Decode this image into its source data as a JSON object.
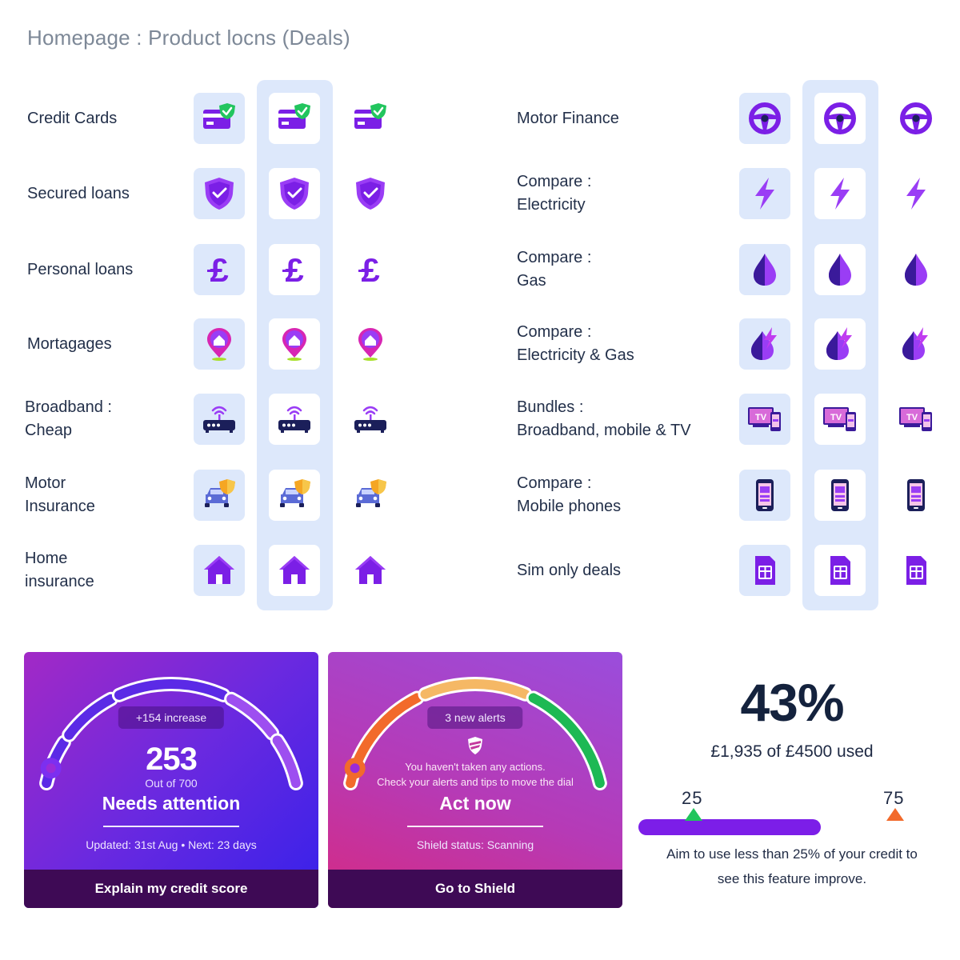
{
  "page": {
    "title": "Homepage : Product Icons (Deals)",
    "title_display": "Homepage : Product locns (Deals)"
  },
  "left_rows": [
    {
      "label": "Credit Cards",
      "icon": "credit-card-icon"
    },
    {
      "label": "Secured loans",
      "icon": "shield-check-icon"
    },
    {
      "label": "Personal loans",
      "icon": "pound-icon"
    },
    {
      "label": "Mortagages",
      "icon": "home-pin-icon"
    },
    {
      "label": "Broadband :\nCheap",
      "icon": "router-icon"
    },
    {
      "label": "Motor\nInsurance",
      "icon": "car-shield-icon"
    },
    {
      "label": "Home\ninsurance",
      "icon": "house-icon"
    }
  ],
  "right_rows": [
    {
      "label": "Motor Finance",
      "icon": "steering-wheel-icon"
    },
    {
      "label": "Compare :\nElectricity",
      "icon": "lightning-icon"
    },
    {
      "label": "Compare :\nGas",
      "icon": "flame-drop-icon"
    },
    {
      "label": "Compare :\nElectricity & Gas",
      "icon": "flame-bolt-icon"
    },
    {
      "label": "Bundles :\nBroadband, mobile & TV",
      "icon": "tv-phone-icon"
    },
    {
      "label": "Compare :\nMobile phones",
      "icon": "mobile-phone-icon"
    },
    {
      "label": "Sim only deals",
      "icon": "sim-card-icon"
    }
  ],
  "icon_colors": {
    "purple": "#7b1fe6",
    "violet": "#9a3df5",
    "green": "#21c55d",
    "lime": "#a8e02a",
    "orange": "#f5a623",
    "light": "#dde8fb"
  },
  "credit_card": {
    "badge": "+154 increase",
    "score": "253",
    "out_of": "Out of 700",
    "status": "Needs attention",
    "updated": "Updated: 31st Aug • Next: 23 days",
    "button": "Explain my credit score",
    "score_value": 253,
    "score_max": 700
  },
  "shield_card": {
    "badge": "3 new alerts",
    "message_line1": "You haven't taken any actions.",
    "message_line2": "Check your alerts and tips to move the dial",
    "status": "Act now",
    "shield_status": "Shield status: Scanning",
    "button": "Go to Shield"
  },
  "utilisation": {
    "percent": "43%",
    "used_text": "£1,935 of £4500 used",
    "marker_low": "25",
    "marker_high": "75",
    "advice_line1": "Aim to use less than 25% of your credit to",
    "advice_line2": "see this feature improve.",
    "marker_low_color": "#21c55d",
    "marker_high_color": "#f26a2b",
    "bar_color": "#7c1ee8"
  }
}
